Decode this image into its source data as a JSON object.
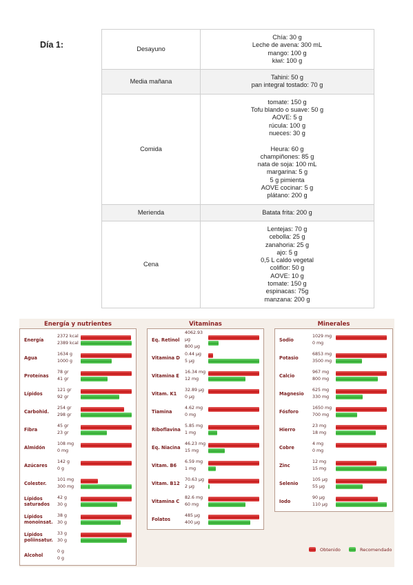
{
  "day_label": "Día 1:",
  "meals": [
    {
      "name": "Desayuno",
      "foods": [
        [
          "Chía: 30 g",
          "Leche de avena: 300 mL",
          "mango: 100 g",
          "kiwi: 100 g"
        ]
      ]
    },
    {
      "name": "Media mañana",
      "foods": [
        [
          "Tahini: 50 g",
          "pan integral tostado: 70 g"
        ]
      ]
    },
    {
      "name": "Comida",
      "foods": [
        [
          "tomate: 150 g",
          "Tofu blando o suave: 50 g",
          "AOVE: 5 g",
          "rúcula: 100 g",
          "nueces: 30 g"
        ],
        [
          "Heura: 60 g",
          "champiñones: 85 g",
          "nata de soja: 100 mL",
          "margarina: 5 g",
          "5 g pimienta",
          "AOVE cocinar: 5 g",
          "plátano: 200 g"
        ]
      ]
    },
    {
      "name": "Merienda",
      "foods": [
        [
          "Batata frita: 200 g"
        ]
      ]
    },
    {
      "name": "Cena",
      "foods": [
        [
          "Lentejas: 70 g",
          "cebolla: 25 g",
          "zanahoria: 25 g",
          "ajo: 5 g",
          "0,5 L caldo vegetal",
          "coliflor: 50 g",
          "AOVE: 10 g",
          "tomate: 150 g",
          "espinacas: 75g",
          "manzana: 200 g"
        ]
      ]
    }
  ],
  "nutrition": {
    "panels": [
      {
        "title": "Energía y nutrientes",
        "rows": [
          {
            "name": "Energía",
            "obtained": {
              "value": 2372,
              "label": "2372 kcal"
            },
            "recommended": {
              "value": 2389,
              "label": "2389 kcal"
            }
          },
          {
            "name": "Agua",
            "obtained": {
              "value": 1634,
              "label": "1634 g"
            },
            "recommended": {
              "value": 1000,
              "label": "1000 g"
            }
          },
          {
            "name": "Proteínas",
            "obtained": {
              "value": 78,
              "label": "78 gr"
            },
            "recommended": {
              "value": 41,
              "label": "41 gr"
            }
          },
          {
            "name": "Lípidos",
            "obtained": {
              "value": 121,
              "label": "121 gr"
            },
            "recommended": {
              "value": 92,
              "label": "92 gr"
            }
          },
          {
            "name": "Carbohid.",
            "obtained": {
              "value": 254,
              "label": "254 gr"
            },
            "recommended": {
              "value": 298,
              "label": "298 gr"
            }
          },
          {
            "name": "Fibra",
            "obtained": {
              "value": 45,
              "label": "45 gr"
            },
            "recommended": {
              "value": 23,
              "label": "23 gr"
            }
          },
          {
            "name": "Almidón",
            "obtained": {
              "value": 108,
              "label": "108 mg"
            },
            "recommended": {
              "value": 0,
              "label": "0 mg"
            }
          },
          {
            "name": "Azúcares",
            "obtained": {
              "value": 142,
              "label": "142 g"
            },
            "recommended": {
              "value": 0,
              "label": "0 g"
            }
          },
          {
            "name": "Colester.",
            "obtained": {
              "value": 101,
              "label": "101 mg"
            },
            "recommended": {
              "value": 300,
              "label": "300 mg"
            }
          },
          {
            "name": "Lípidos saturados",
            "obtained": {
              "value": 42,
              "label": "42 g"
            },
            "recommended": {
              "value": 30,
              "label": "30 g"
            }
          },
          {
            "name": "Lípidos monoinsat.",
            "obtained": {
              "value": 38,
              "label": "38 g"
            },
            "recommended": {
              "value": 30,
              "label": "30 g"
            }
          },
          {
            "name": "Lípidos poliinsatur.",
            "obtained": {
              "value": 33,
              "label": "33 g"
            },
            "recommended": {
              "value": 30,
              "label": "30 g"
            }
          },
          {
            "name": "Alcohol",
            "obtained": {
              "value": 0,
              "label": "0 g"
            },
            "recommended": {
              "value": 0,
              "label": "0 g"
            }
          }
        ]
      },
      {
        "title": "Vitaminas",
        "rows": [
          {
            "name": "Eq. Retinol",
            "obtained": {
              "value": 4062.93,
              "label": "4062.93 µg"
            },
            "recommended": {
              "value": 800,
              "label": "800 µg"
            }
          },
          {
            "name": "Vitamina D",
            "obtained": {
              "value": 0.44,
              "label": "0.44 µg"
            },
            "recommended": {
              "value": 5,
              "label": "5 µg"
            }
          },
          {
            "name": "Vitamina E",
            "obtained": {
              "value": 16.34,
              "label": "16.34 mg"
            },
            "recommended": {
              "value": 12,
              "label": "12 mg"
            }
          },
          {
            "name": "Vitam. K1",
            "obtained": {
              "value": 32.89,
              "label": "32.89 µg"
            },
            "recommended": {
              "value": 0,
              "label": "0 µg"
            }
          },
          {
            "name": "Tiamina",
            "obtained": {
              "value": 4.62,
              "label": "4.62 mg"
            },
            "recommended": {
              "value": 0,
              "label": "0 mg"
            }
          },
          {
            "name": "Riboflavina",
            "obtained": {
              "value": 5.85,
              "label": "5.85 mg"
            },
            "recommended": {
              "value": 1,
              "label": "1 mg"
            }
          },
          {
            "name": "Eq. Niacina",
            "obtained": {
              "value": 46.23,
              "label": "46.23 mg"
            },
            "recommended": {
              "value": 15,
              "label": "15 mg"
            }
          },
          {
            "name": "Vitam. B6",
            "obtained": {
              "value": 6.59,
              "label": "6.59 mg"
            },
            "recommended": {
              "value": 1,
              "label": "1 mg"
            }
          },
          {
            "name": "Vitam. B12",
            "obtained": {
              "value": 70.63,
              "label": "70.63 µg"
            },
            "recommended": {
              "value": 2,
              "label": "2 µg"
            }
          },
          {
            "name": "Vitamina C",
            "obtained": {
              "value": 82.6,
              "label": "82.6 mg"
            },
            "recommended": {
              "value": 60,
              "label": "60 mg"
            }
          },
          {
            "name": "Folatos",
            "obtained": {
              "value": 485,
              "label": "485 µg"
            },
            "recommended": {
              "value": 400,
              "label": "400 µg"
            }
          }
        ]
      },
      {
        "title": "Minerales",
        "rows": [
          {
            "name": "Sodio",
            "obtained": {
              "value": 1029,
              "label": "1029 mg"
            },
            "recommended": {
              "value": 0,
              "label": "0 mg"
            }
          },
          {
            "name": "Potasio",
            "obtained": {
              "value": 6853,
              "label": "6853 mg"
            },
            "recommended": {
              "value": 3500,
              "label": "3500 mg"
            }
          },
          {
            "name": "Calcio",
            "obtained": {
              "value": 967,
              "label": "967 mg"
            },
            "recommended": {
              "value": 800,
              "label": "800 mg"
            }
          },
          {
            "name": "Magnesio",
            "obtained": {
              "value": 625,
              "label": "625 mg"
            },
            "recommended": {
              "value": 330,
              "label": "330 mg"
            }
          },
          {
            "name": "Fósforo",
            "obtained": {
              "value": 1650,
              "label": "1650 mg"
            },
            "recommended": {
              "value": 700,
              "label": "700 mg"
            }
          },
          {
            "name": "Hierro",
            "obtained": {
              "value": 23,
              "label": "23 mg"
            },
            "recommended": {
              "value": 18,
              "label": "18 mg"
            }
          },
          {
            "name": "Cobre",
            "obtained": {
              "value": 4,
              "label": "4 mg"
            },
            "recommended": {
              "value": 0,
              "label": "0 mg"
            }
          },
          {
            "name": "Zinc",
            "obtained": {
              "value": 12,
              "label": "12 mg"
            },
            "recommended": {
              "value": 15,
              "label": "15 mg"
            }
          },
          {
            "name": "Selenio",
            "obtained": {
              "value": 105,
              "label": "105 µg"
            },
            "recommended": {
              "value": 55,
              "label": "55 µg"
            }
          },
          {
            "name": "Iodo",
            "obtained": {
              "value": 90,
              "label": "90 µg"
            },
            "recommended": {
              "value": 110,
              "label": "110 µg"
            }
          }
        ]
      }
    ],
    "legend": {
      "obtained": "Obtenido",
      "recommended": "Recomendado"
    }
  }
}
